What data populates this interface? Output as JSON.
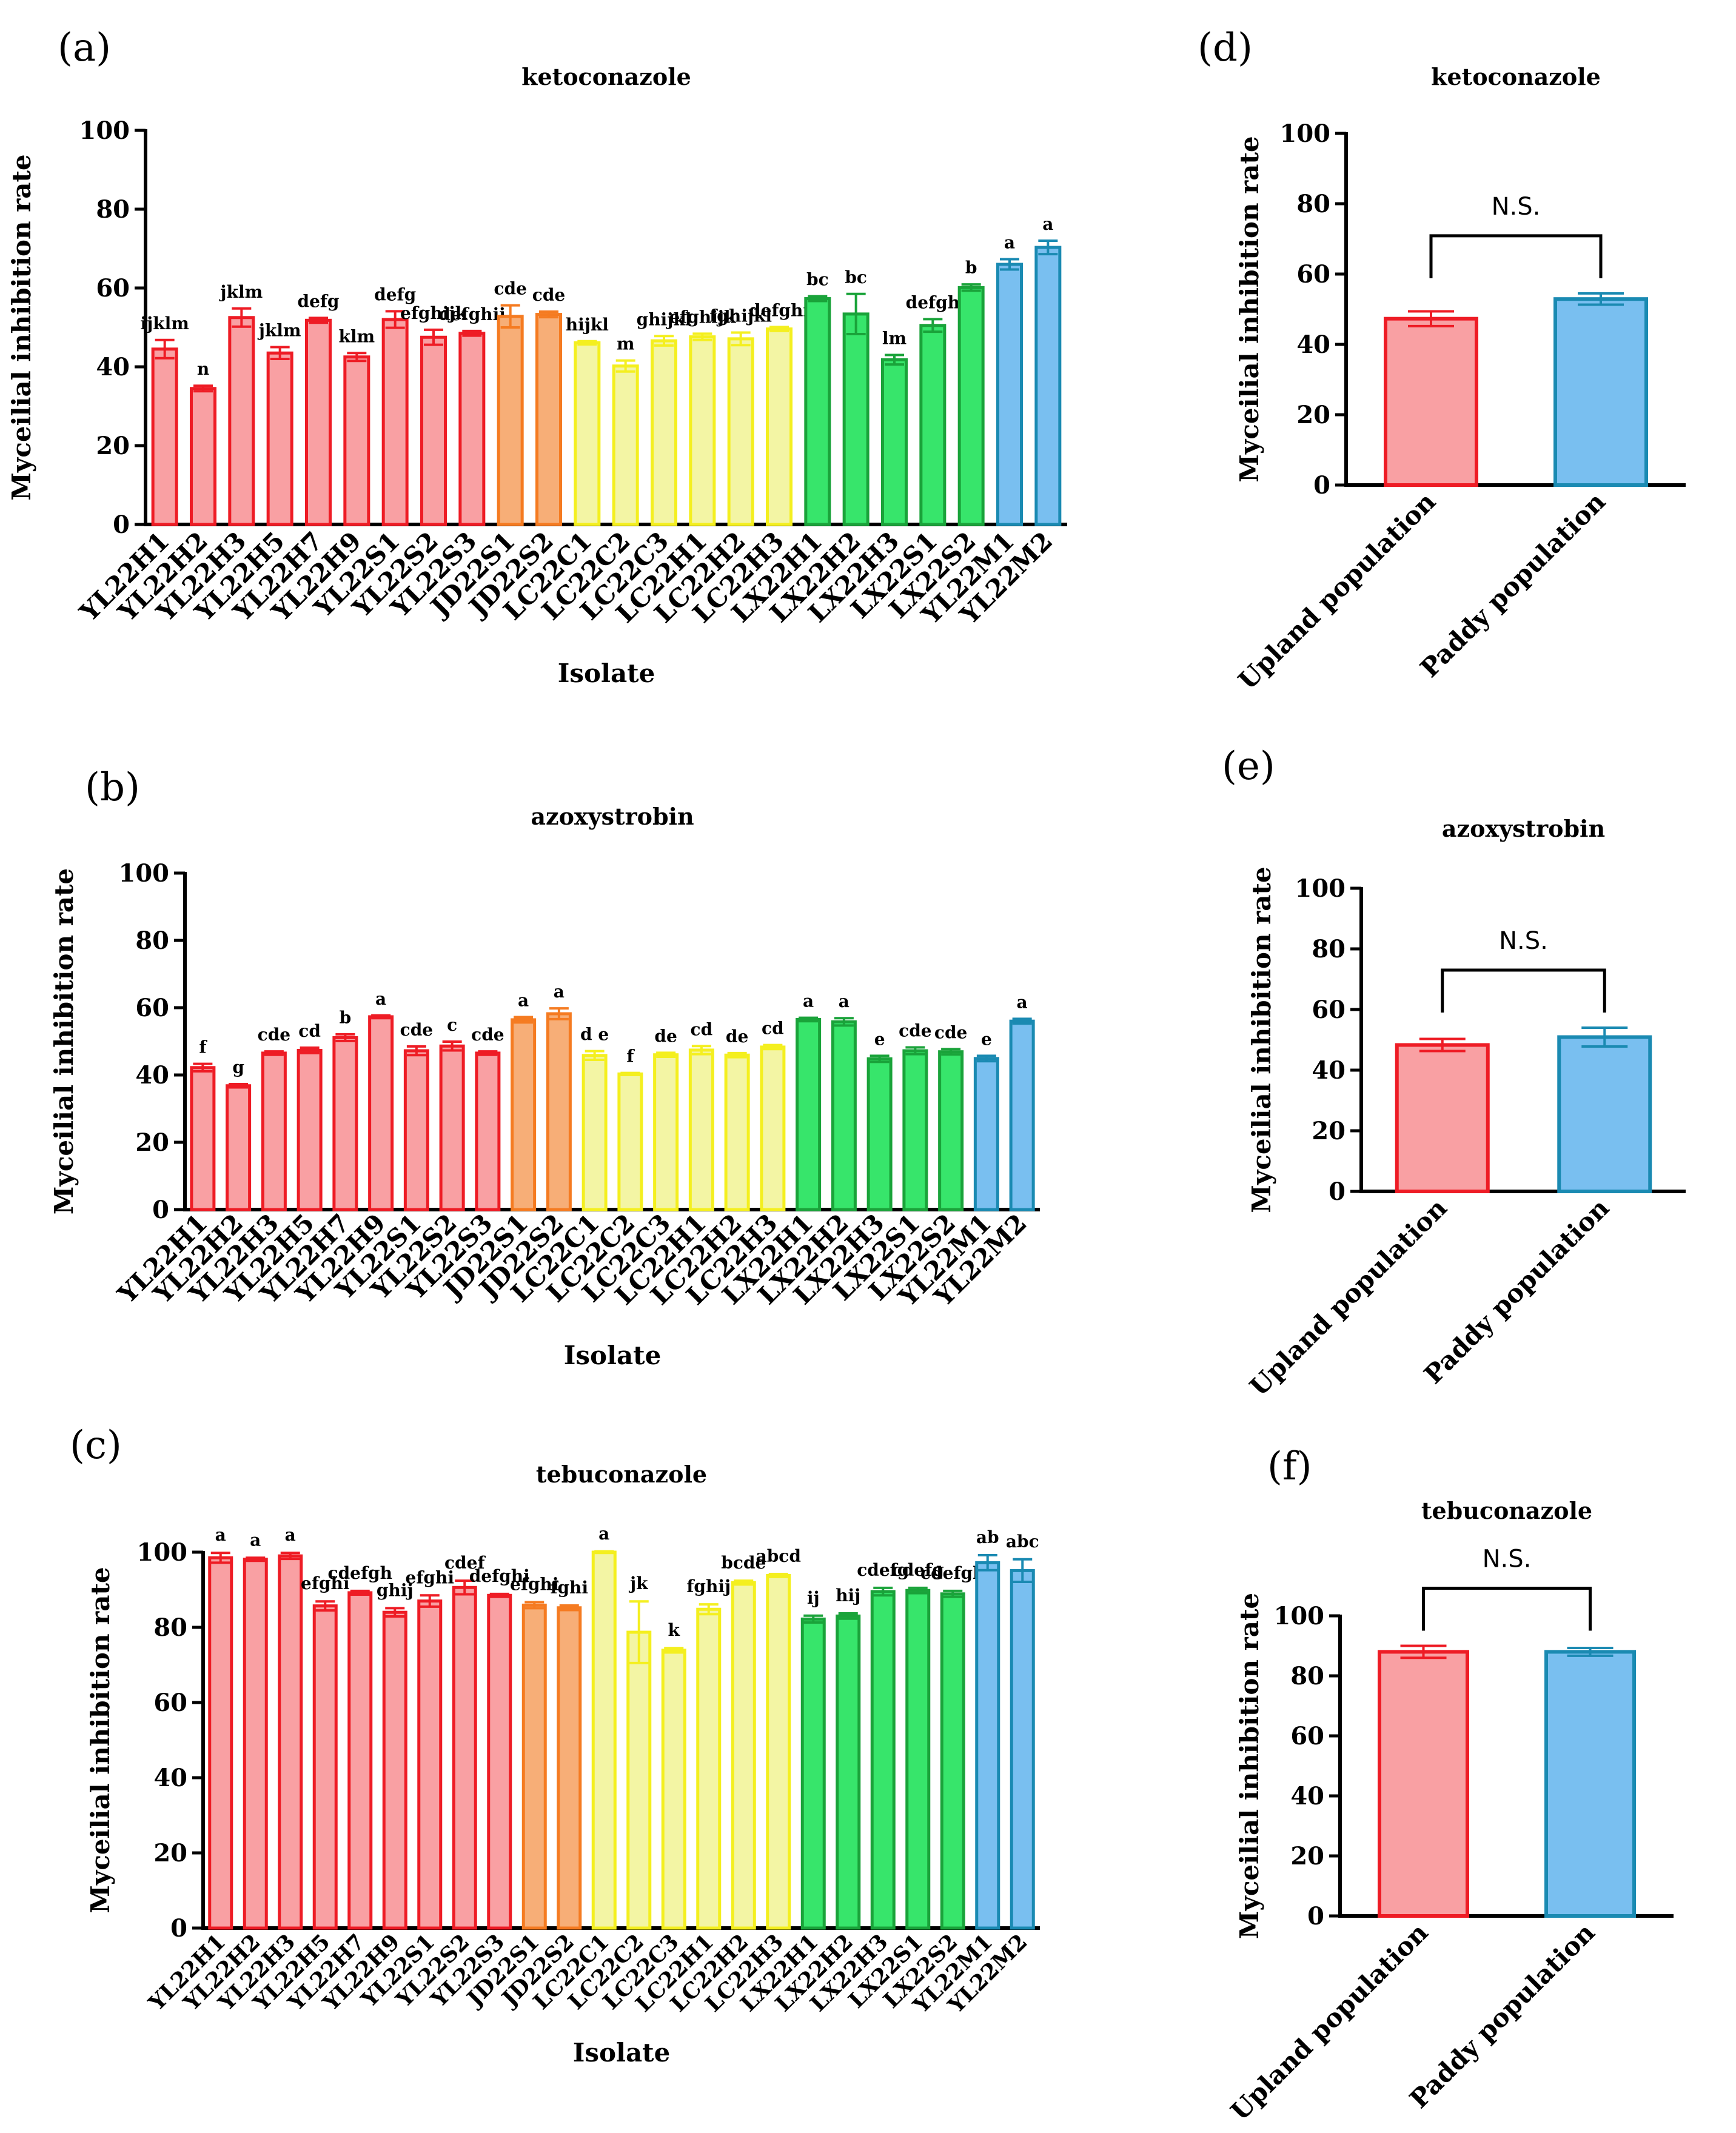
{
  "figure": {
    "palette": {
      "red": {
        "stroke": "#ee1c25",
        "fill": "#f9a0a3"
      },
      "orange": {
        "stroke": "#f57b21",
        "fill": "#f7ae77"
      },
      "yellow": {
        "stroke": "#f4ef1f",
        "fill": "#f3f5a4"
      },
      "green": {
        "stroke": "#1aa33a",
        "fill": "#37e56b"
      },
      "blue": {
        "stroke": "#1a8ab2",
        "fill": "#79bff0"
      }
    }
  },
  "chart_data": [
    {
      "panel_label": "(a)",
      "type": "bar",
      "title": "ketoconazole",
      "xlabel": "Isolate",
      "ylabel": "Myceilial inhibition rate",
      "ylim": [
        0,
        100
      ],
      "yticks": [
        "0",
        "20",
        "40",
        "60",
        "80",
        "100"
      ],
      "categories": [
        "YL22H1",
        "YL22H2",
        "YL22H3",
        "YL22H5",
        "YL22H7",
        "YL22H9",
        "YL22S1",
        "YL22S2",
        "YL22S3",
        "JD22S1",
        "JD22S2",
        "LC22C1",
        "LC22C2",
        "LC22C3",
        "LC22H1",
        "LC22H2",
        "LC22H3",
        "LX22H1",
        "LX22H2",
        "LX22H3",
        "LX22S1",
        "LX22S2",
        "YL22M1",
        "YL22M2"
      ],
      "colors": [
        "red",
        "red",
        "red",
        "red",
        "red",
        "red",
        "red",
        "red",
        "red",
        "orange",
        "orange",
        "yellow",
        "yellow",
        "yellow",
        "yellow",
        "yellow",
        "yellow",
        "green",
        "green",
        "green",
        "green",
        "green",
        "blue",
        "blue"
      ],
      "values": [
        44.5,
        34.5,
        52.5,
        43.5,
        51.8,
        42.5,
        52,
        47.5,
        48.5,
        52.8,
        53.3,
        46.1,
        40.2,
        46.6,
        47.6,
        47.1,
        49.6,
        57.3,
        53.4,
        41.8,
        50.5,
        60.1,
        66,
        70.3
      ],
      "errors": [
        2.3,
        0.7,
        2.3,
        1.5,
        0.6,
        1.0,
        2.1,
        1.9,
        0.6,
        2.8,
        0.7,
        0.4,
        1.4,
        1.2,
        0.8,
        1.6,
        0.5,
        0.6,
        5.1,
        1.2,
        1.6,
        0.8,
        1.3,
        1.7
      ],
      "letters": [
        "ijklm",
        "n",
        "jklm",
        "jklm",
        "defg",
        "klm",
        "defg",
        "efghijk",
        "defghij",
        "cde",
        "cde",
        "hijkl",
        "m",
        "ghijkl",
        "efghijk",
        "fghijkl",
        "defghi",
        "bc",
        "bc",
        "lm",
        "defgh",
        "b",
        "a",
        "a"
      ]
    },
    {
      "panel_label": "(b)",
      "type": "bar",
      "title": "azoxystrobin",
      "xlabel": "Isolate",
      "ylabel": "Myceilial inhibition rate",
      "ylim": [
        0,
        100
      ],
      "yticks": [
        "0",
        "20",
        "40",
        "60",
        "80",
        "100"
      ],
      "categories": [
        "YL22H1",
        "YL22H2",
        "YL22H3",
        "YL22H5",
        "YL22H7",
        "YL22H9",
        "YL22S1",
        "YL22S2",
        "YL22S3",
        "JD22S1",
        "JD22S2",
        "LC22C1",
        "LC22C2",
        "LC22C3",
        "LC22H1",
        "LC22H2",
        "LC22H3",
        "LX22H1",
        "LX22H2",
        "LX22H3",
        "LX22S1",
        "LX22S2",
        "YL22M1",
        "YL22M2"
      ],
      "colors": [
        "red",
        "red",
        "red",
        "red",
        "red",
        "red",
        "red",
        "red",
        "red",
        "orange",
        "orange",
        "yellow",
        "yellow",
        "yellow",
        "yellow",
        "yellow",
        "yellow",
        "green",
        "green",
        "green",
        "green",
        "green",
        "blue",
        "blue"
      ],
      "values": [
        42.2,
        36.8,
        46.5,
        47.3,
        51.1,
        57.3,
        47.2,
        48.6,
        46.5,
        56.4,
        58.2,
        45.8,
        40.3,
        46,
        47.4,
        45.9,
        48.3,
        56.5,
        55.8,
        44.8,
        47.2,
        46.9,
        44.9,
        56
      ],
      "errors": [
        1.1,
        0.5,
        0.5,
        0.8,
        1.0,
        0.4,
        1.3,
        1.3,
        0.5,
        0.8,
        1.6,
        1.3,
        0.3,
        0.6,
        1.2,
        0.6,
        0.6,
        0.5,
        1.1,
        0.9,
        1.0,
        0.8,
        0.8,
        0.7
      ],
      "letters": [
        "f",
        "g",
        "cde",
        "cd",
        "b",
        "a",
        "cde",
        "c",
        "cde",
        "a",
        "a",
        "d e",
        "f",
        "de",
        "cd",
        "de",
        "cd",
        "a",
        "a",
        "e",
        "cde",
        "cde",
        "e",
        "a"
      ]
    },
    {
      "panel_label": "(c)",
      "type": "bar",
      "title": "tebuconazole",
      "xlabel": "Isolate",
      "ylabel": "Myceilial inhibition rate",
      "ylim": [
        0,
        100
      ],
      "yticks": [
        "0",
        "20",
        "40",
        "60",
        "80",
        "100"
      ],
      "categories": [
        "YL22H1",
        "YL22H2",
        "YL22H3",
        "YL22H5",
        "YL22H7",
        "YL22H9",
        "YL22S1",
        "YL22S2",
        "YL22S3",
        "JD22S1",
        "JD22S2",
        "LC22C1",
        "LC22C2",
        "LC22C3",
        "LC22H1",
        "LC22H2",
        "LC22H3",
        "LX22H1",
        "LX22H2",
        "LX22H3",
        "LX22S1",
        "LX22S2",
        "YL22M1",
        "YL22M2"
      ],
      "colors": [
        "red",
        "red",
        "red",
        "red",
        "red",
        "red",
        "red",
        "red",
        "red",
        "orange",
        "orange",
        "yellow",
        "yellow",
        "yellow",
        "yellow",
        "yellow",
        "yellow",
        "green",
        "green",
        "green",
        "green",
        "green",
        "blue",
        "blue"
      ],
      "values": [
        98.5,
        98.1,
        99,
        85.7,
        89.2,
        84,
        87,
        90.6,
        88.5,
        85.9,
        85.2,
        100,
        78.7,
        73.9,
        84.8,
        91.9,
        93.8,
        82.2,
        83,
        89.5,
        89.8,
        88.9,
        97.2,
        95.1
      ],
      "errors": [
        1.3,
        0.4,
        0.8,
        1.2,
        0.5,
        1.1,
        1.5,
        1.8,
        0.4,
        0.8,
        0.6,
        0.2,
        8.2,
        0.6,
        1.3,
        0.5,
        0.4,
        0.9,
        0.7,
        1.0,
        0.7,
        0.8,
        2.0,
        3.0
      ],
      "letters": [
        "a",
        "a",
        "a",
        "efghi",
        "cdefgh",
        "ghij",
        "efghi",
        "cdef",
        "defghi",
        "efghi",
        "fghi",
        "a",
        "jk",
        "k",
        "fghij",
        "bcde",
        "abcd",
        "ij",
        "hij",
        "cdefg",
        "cdefg",
        "cdefgh",
        "ab",
        "abc"
      ]
    },
    {
      "panel_label": "(d)",
      "type": "bar",
      "title": "ketoconazole",
      "ylabel": "Myceilial inhibition rate",
      "ylim": [
        0,
        100
      ],
      "yticks": [
        "0",
        "20",
        "40",
        "60",
        "80",
        "100"
      ],
      "categories": [
        "Upland population",
        "Paddy population"
      ],
      "colors": [
        "red",
        "blue"
      ],
      "values": [
        47.3,
        52.9
      ],
      "errors": [
        2.1,
        1.6
      ],
      "annotation": "N.S."
    },
    {
      "panel_label": "(e)",
      "type": "bar",
      "title": "azoxystrobin",
      "ylabel": "Myceilial inhibition rate",
      "ylim": [
        0,
        100
      ],
      "yticks": [
        "0",
        "20",
        "40",
        "60",
        "80",
        "100"
      ],
      "categories": [
        "Upland population",
        "Paddy population"
      ],
      "colors": [
        "red",
        "blue"
      ],
      "values": [
        48.3,
        50.9
      ],
      "errors": [
        2.0,
        3.1
      ],
      "annotation": "N.S."
    },
    {
      "panel_label": "(f)",
      "type": "bar",
      "title": "tebuconazole",
      "ylabel": "Myceilial inhibition rate",
      "ylim": [
        0,
        100
      ],
      "yticks": [
        "0",
        "20",
        "40",
        "60",
        "80",
        "100"
      ],
      "categories": [
        "Upland population",
        "Paddy population"
      ],
      "colors": [
        "red",
        "blue"
      ],
      "values": [
        88,
        88
      ],
      "errors": [
        2.0,
        1.3
      ],
      "annotation": "N.S."
    }
  ]
}
